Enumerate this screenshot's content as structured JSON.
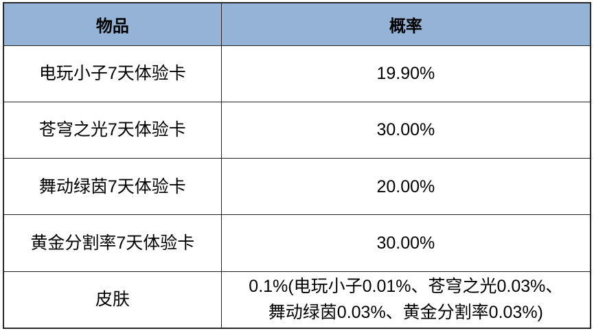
{
  "table": {
    "columns": [
      {
        "label": "物品"
      },
      {
        "label": "概率"
      }
    ],
    "rows": [
      {
        "item": "电玩小子7天体验卡",
        "probability": "19.90%"
      },
      {
        "item": "苍穹之光7天体验卡",
        "probability": "30.00%"
      },
      {
        "item": "舞动绿茵7天体验卡",
        "probability": "20.00%"
      },
      {
        "item": "黄金分割率7天体验卡",
        "probability": "30.00%"
      },
      {
        "item": "皮肤",
        "probability": "0.1%(电玩小子0.01%、苍穹之光0.03%、\n舞动绿茵0.03%、黄金分割率0.03%)"
      }
    ],
    "colors": {
      "header_background": "#95B3D7",
      "grid_border": "#1f1f1f",
      "outer_border": "#262626",
      "text": "#000000",
      "page_background": "#ffffff"
    }
  }
}
